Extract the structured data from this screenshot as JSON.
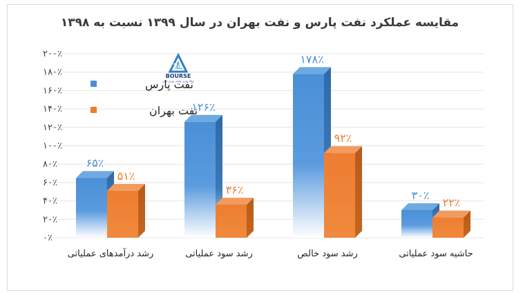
{
  "chart_data": {
    "type": "bar",
    "title": "مقایسه عملکرد نفت پارس و نفت بهران در سال ۱۳۹۹ نسبت به ۱۳۹۸",
    "categories": [
      "رشد درآمدهای عملیاتی",
      "رشد سود عملیاتی",
      "رشد سود خالص",
      "حاشیه سود عملیاتی"
    ],
    "series": [
      {
        "name": "نفت پارس",
        "values": [
          65,
          126,
          178,
          30
        ],
        "data_labels": [
          "۶۵٪",
          "۱۲۶٪",
          "۱۷۸٪",
          "۳۰٪"
        ],
        "color": "#4a8fd6"
      },
      {
        "name": "نفت بهران",
        "values": [
          51,
          36,
          92,
          22
        ],
        "data_labels": [
          "۵۱٪",
          "۳۶٪",
          "۹۲٪",
          "۲۲٪"
        ],
        "color": "#ed7d31"
      }
    ],
    "ylim": [
      0,
      200
    ],
    "yticks": [
      0,
      20,
      40,
      60,
      80,
      100,
      120,
      140,
      160,
      180,
      200
    ],
    "ytick_labels": [
      "۰٪",
      "۲۰٪",
      "۴۰٪",
      "۶۰٪",
      "۸۰٪",
      "۱۰۰٪",
      "۱۲۰٪",
      "۱۴۰٪",
      "۱۶۰٪",
      "۱۸۰٪",
      "۲۰۰٪"
    ],
    "grid": true,
    "legend_position": "top-left",
    "style": "3d-column"
  },
  "logo": {
    "text": "BOURSE",
    "subtitle": "پایگاه خبری تحلیلی بورس ایران",
    "icon": "bourse24-logo-icon"
  }
}
